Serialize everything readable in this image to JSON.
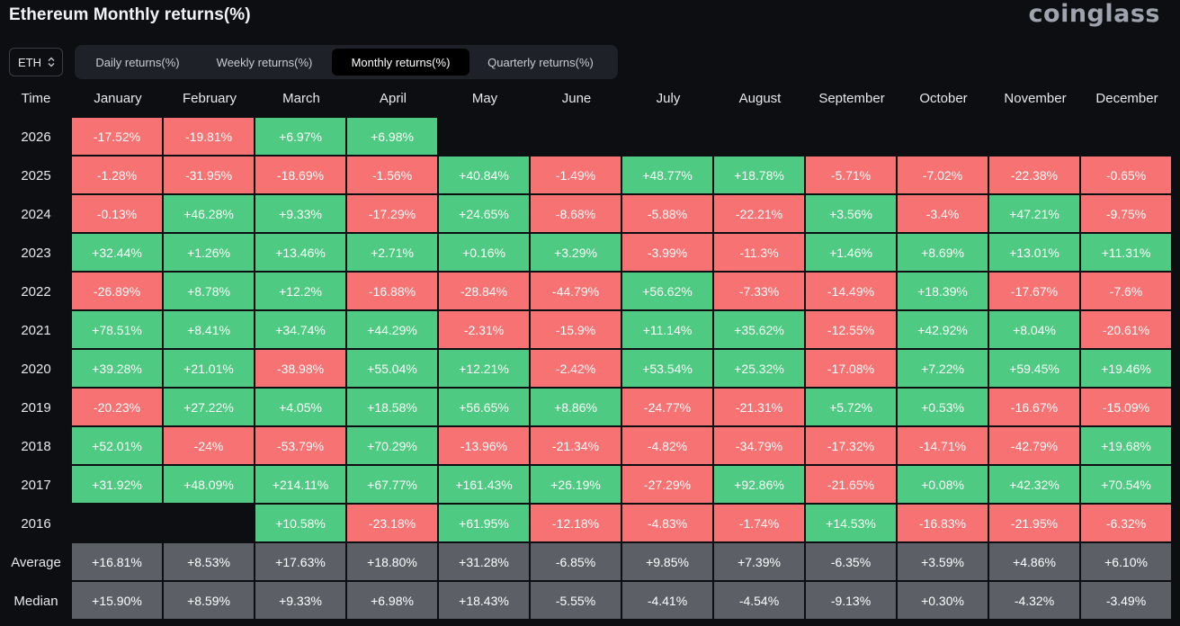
{
  "header": {
    "title": "Ethereum Monthly returns(%)",
    "brand": "coinglass"
  },
  "coin_select": {
    "value": "ETH"
  },
  "tabs": [
    {
      "label": "Daily returns(%)",
      "active": false
    },
    {
      "label": "Weekly returns(%)",
      "active": false
    },
    {
      "label": "Monthly returns(%)",
      "active": true
    },
    {
      "label": "Quarterly returns(%)",
      "active": false
    }
  ],
  "colors": {
    "positive": "#4fca82",
    "negative": "#f77373",
    "stat": "#5c5f66",
    "background": "#0d0e12"
  },
  "table": {
    "time_header": "Time",
    "months": [
      "January",
      "February",
      "March",
      "April",
      "May",
      "June",
      "July",
      "August",
      "September",
      "October",
      "November",
      "December"
    ],
    "rows": [
      {
        "label": "2026",
        "type": "year",
        "values": [
          "-17.52%",
          "-19.81%",
          "+6.97%",
          "+6.98%",
          "",
          "",
          "",
          "",
          "",
          "",
          "",
          ""
        ]
      },
      {
        "label": "2025",
        "type": "year",
        "values": [
          "-1.28%",
          "-31.95%",
          "-18.69%",
          "-1.56%",
          "+40.84%",
          "-1.49%",
          "+48.77%",
          "+18.78%",
          "-5.71%",
          "-7.02%",
          "-22.38%",
          "-0.65%"
        ]
      },
      {
        "label": "2024",
        "type": "year",
        "values": [
          "-0.13%",
          "+46.28%",
          "+9.33%",
          "-17.29%",
          "+24.65%",
          "-8.68%",
          "-5.88%",
          "-22.21%",
          "+3.56%",
          "-3.4%",
          "+47.21%",
          "-9.75%"
        ]
      },
      {
        "label": "2023",
        "type": "year",
        "values": [
          "+32.44%",
          "+1.26%",
          "+13.46%",
          "+2.71%",
          "+0.16%",
          "+3.29%",
          "-3.99%",
          "-11.3%",
          "+1.46%",
          "+8.69%",
          "+13.01%",
          "+11.31%"
        ]
      },
      {
        "label": "2022",
        "type": "year",
        "values": [
          "-26.89%",
          "+8.78%",
          "+12.2%",
          "-16.88%",
          "-28.84%",
          "-44.79%",
          "+56.62%",
          "-7.33%",
          "-14.49%",
          "+18.39%",
          "-17.67%",
          "-7.6%"
        ]
      },
      {
        "label": "2021",
        "type": "year",
        "values": [
          "+78.51%",
          "+8.41%",
          "+34.74%",
          "+44.29%",
          "-2.31%",
          "-15.9%",
          "+11.14%",
          "+35.62%",
          "-12.55%",
          "+42.92%",
          "+8.04%",
          "-20.61%"
        ]
      },
      {
        "label": "2020",
        "type": "year",
        "values": [
          "+39.28%",
          "+21.01%",
          "-38.98%",
          "+55.04%",
          "+12.21%",
          "-2.42%",
          "+53.54%",
          "+25.32%",
          "-17.08%",
          "+7.22%",
          "+59.45%",
          "+19.46%"
        ]
      },
      {
        "label": "2019",
        "type": "year",
        "values": [
          "-20.23%",
          "+27.22%",
          "+4.05%",
          "+18.58%",
          "+56.65%",
          "+8.86%",
          "-24.77%",
          "-21.31%",
          "+5.72%",
          "+0.53%",
          "-16.67%",
          "-15.09%"
        ]
      },
      {
        "label": "2018",
        "type": "year",
        "values": [
          "+52.01%",
          "-24%",
          "-53.79%",
          "+70.29%",
          "-13.96%",
          "-21.34%",
          "-4.82%",
          "-34.79%",
          "-17.32%",
          "-14.71%",
          "-42.79%",
          "+19.68%"
        ]
      },
      {
        "label": "2017",
        "type": "year",
        "values": [
          "+31.92%",
          "+48.09%",
          "+214.11%",
          "+67.77%",
          "+161.43%",
          "+26.19%",
          "-27.29%",
          "+92.86%",
          "-21.65%",
          "+0.08%",
          "+42.32%",
          "+70.54%"
        ]
      },
      {
        "label": "2016",
        "type": "year",
        "values": [
          "",
          "",
          "+10.58%",
          "-23.18%",
          "+61.95%",
          "-12.18%",
          "-4.83%",
          "-1.74%",
          "+14.53%",
          "-16.83%",
          "-21.95%",
          "-6.32%"
        ]
      },
      {
        "label": "Average",
        "type": "stat",
        "values": [
          "+16.81%",
          "+8.53%",
          "+17.63%",
          "+18.80%",
          "+31.28%",
          "-6.85%",
          "+9.85%",
          "+7.39%",
          "-6.35%",
          "+3.59%",
          "+4.86%",
          "+6.10%"
        ]
      },
      {
        "label": "Median",
        "type": "stat",
        "values": [
          "+15.90%",
          "+8.59%",
          "+9.33%",
          "+6.98%",
          "+18.43%",
          "-5.55%",
          "-4.41%",
          "-4.54%",
          "-9.13%",
          "+0.30%",
          "-4.32%",
          "-3.49%"
        ]
      }
    ]
  }
}
